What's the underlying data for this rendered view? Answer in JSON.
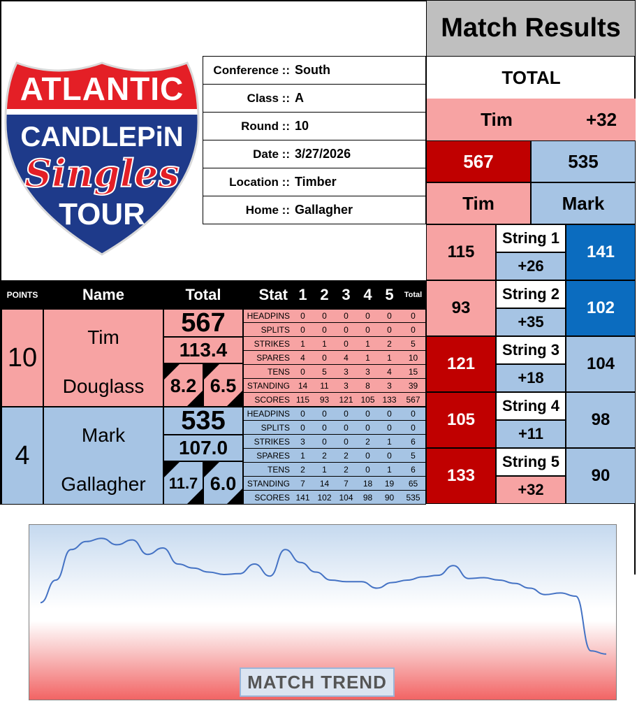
{
  "logo": {
    "line1": "ATLANTIC",
    "line2": "CANDLEPiN",
    "line3": "Singles",
    "line4": "TOUR"
  },
  "info": [
    {
      "label": "Conference ::",
      "value": "South"
    },
    {
      "label": "Class ::",
      "value": "A"
    },
    {
      "label": "Round ::",
      "value": "10"
    },
    {
      "label": "Date ::",
      "value": "3/27/2026"
    },
    {
      "label": "Location ::",
      "value": "Timber"
    },
    {
      "label": "Home ::",
      "value": "Gallagher"
    }
  ],
  "results": {
    "title": "Match Results",
    "total_label": "TOTAL",
    "leader": "Tim",
    "margin": "+32",
    "score_left": "567",
    "score_right": "535",
    "name_left": "Tim",
    "name_right": "Mark",
    "strings": [
      {
        "label": "String 1",
        "left": "115",
        "diff": "+26",
        "right": "141"
      },
      {
        "label": "String 2",
        "left": "93",
        "diff": "+35",
        "right": "102"
      },
      {
        "label": "String 3",
        "left": "121",
        "diff": "+18",
        "right": "104"
      },
      {
        "label": "String 4",
        "left": "105",
        "diff": "+11",
        "right": "98"
      },
      {
        "label": "String 5",
        "left": "133",
        "diff": "+32",
        "right": "90"
      }
    ]
  },
  "table": {
    "headers": {
      "points": "POINTS",
      "name": "Name",
      "total": "Total",
      "stat": "Stat",
      "g1": "1",
      "g2": "2",
      "g3": "3",
      "g4": "4",
      "g5": "5",
      "tot": "Total"
    },
    "players": [
      {
        "points": "10",
        "first": "Tim",
        "last": "Douglass",
        "total": "567",
        "avg": "113.4",
        "left_small": "8.2",
        "right_small": "6.5",
        "stats": [
          {
            "name": "HEADPINS",
            "v": [
              "0",
              "0",
              "0",
              "0",
              "0"
            ],
            "t": "0"
          },
          {
            "name": "SPLITS",
            "v": [
              "0",
              "0",
              "0",
              "0",
              "0"
            ],
            "t": "0"
          },
          {
            "name": "STRIKES",
            "v": [
              "1",
              "1",
              "0",
              "1",
              "2"
            ],
            "t": "5"
          },
          {
            "name": "SPARES",
            "v": [
              "4",
              "0",
              "4",
              "1",
              "1"
            ],
            "t": "10"
          },
          {
            "name": "TENS",
            "v": [
              "0",
              "5",
              "3",
              "3",
              "4"
            ],
            "t": "15"
          },
          {
            "name": "STANDING",
            "v": [
              "14",
              "11",
              "3",
              "8",
              "3"
            ],
            "t": "39"
          },
          {
            "name": "SCORES",
            "v": [
              "115",
              "93",
              "121",
              "105",
              "133"
            ],
            "t": "567"
          }
        ]
      },
      {
        "points": "4",
        "first": "Mark",
        "last": "Gallagher",
        "total": "535",
        "avg": "107.0",
        "left_small": "11.7",
        "right_small": "6.0",
        "stats": [
          {
            "name": "HEADPINS",
            "v": [
              "0",
              "0",
              "0",
              "0",
              "0"
            ],
            "t": "0"
          },
          {
            "name": "SPLITS",
            "v": [
              "0",
              "0",
              "0",
              "0",
              "0"
            ],
            "t": "0"
          },
          {
            "name": "STRIKES",
            "v": [
              "3",
              "0",
              "0",
              "2",
              "1"
            ],
            "t": "6"
          },
          {
            "name": "SPARES",
            "v": [
              "1",
              "2",
              "2",
              "0",
              "0"
            ],
            "t": "5"
          },
          {
            "name": "TENS",
            "v": [
              "2",
              "1",
              "2",
              "0",
              "1"
            ],
            "t": "6"
          },
          {
            "name": "STANDING",
            "v": [
              "7",
              "14",
              "7",
              "18",
              "19"
            ],
            "t": "65"
          },
          {
            "name": "SCORES",
            "v": [
              "141",
              "102",
              "104",
              "98",
              "90"
            ],
            "t": "535"
          }
        ]
      }
    ]
  },
  "trend": {
    "label": "MATCH TREND",
    "line_color": "#4472c4",
    "values": [
      0.12,
      0.4,
      0.78,
      0.88,
      0.92,
      0.84,
      0.9,
      0.72,
      0.8,
      0.6,
      0.55,
      0.5,
      0.47,
      0.48,
      0.6,
      0.45,
      0.78,
      0.62,
      0.5,
      0.4,
      0.38,
      0.38,
      0.3,
      0.37,
      0.4,
      0.44,
      0.46,
      0.58,
      0.42,
      0.43,
      0.4,
      0.36,
      0.3,
      0.22,
      0.24,
      0.2,
      -0.48,
      -0.52
    ]
  }
}
